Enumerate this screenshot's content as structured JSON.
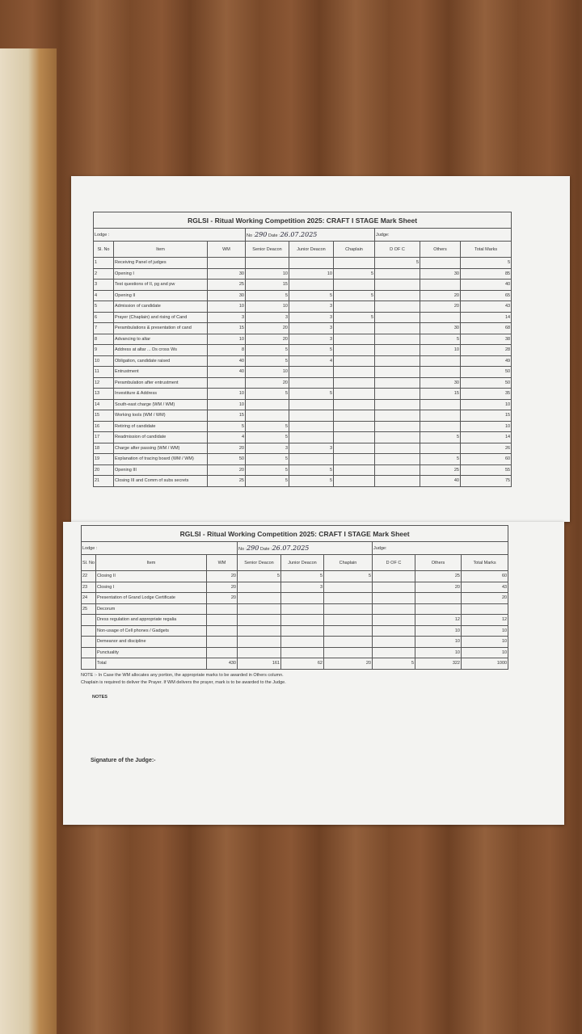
{
  "sheets": [
    {
      "title": "RGLSI - Ritual Working Competition 2025: CRAFT I STAGE Mark Sheet",
      "lodge_label": "Lodge :",
      "no_label": "No :",
      "no_value": "290",
      "date_label": "Date :",
      "date_value": "26.07.2025",
      "judge_label": "Judge:",
      "headers": [
        "Sl. No",
        "Item",
        "WM",
        "Senior Deacon",
        "Junior Deacon",
        "Chaplain",
        "D OF C",
        "Others",
        "Total Marks"
      ],
      "rows": [
        [
          1,
          "Receiving Panel of judges",
          null,
          null,
          null,
          null,
          5,
          null,
          5
        ],
        [
          2,
          "Opening I",
          30,
          10,
          10,
          5,
          null,
          30,
          85
        ],
        [
          3,
          "Test questions of II, pg and pw",
          25,
          15,
          null,
          null,
          null,
          null,
          40
        ],
        [
          4,
          "Opening II",
          30,
          5,
          5,
          5,
          null,
          20,
          65
        ],
        [
          5,
          "Admission of candidate",
          10,
          10,
          3,
          null,
          null,
          20,
          43
        ],
        [
          6,
          "Prayer (Chaplain) and rising of Cand",
          3,
          3,
          3,
          5,
          null,
          null,
          14
        ],
        [
          7,
          "Perambulations & presentation of cand",
          15,
          20,
          3,
          null,
          null,
          30,
          68
        ],
        [
          8,
          "Advancing to altar",
          10,
          20,
          3,
          null,
          null,
          5,
          38
        ],
        [
          9,
          "Address at altar ... Ds cross Ws",
          8,
          5,
          5,
          null,
          null,
          10,
          28
        ],
        [
          10,
          "Obligation, candidate raised",
          40,
          5,
          4,
          null,
          null,
          null,
          49
        ],
        [
          11,
          "Entrustment",
          40,
          10,
          null,
          null,
          null,
          null,
          50
        ],
        [
          12,
          "Perambulation after entrustment",
          null,
          20,
          null,
          null,
          null,
          30,
          50
        ],
        [
          13,
          "Investiture & Address",
          10,
          5,
          5,
          null,
          null,
          15,
          35
        ],
        [
          14,
          "South-east charge (WM / WM)",
          10,
          null,
          null,
          null,
          null,
          null,
          10
        ],
        [
          15,
          "Working tools (WM / WM)",
          15,
          null,
          null,
          null,
          null,
          null,
          15
        ],
        [
          16,
          "Retiring of candidate",
          5,
          5,
          null,
          null,
          null,
          null,
          10
        ],
        [
          17,
          "Readmission of candidate",
          4,
          5,
          null,
          null,
          null,
          5,
          14
        ],
        [
          18,
          "Charge after passing (WM / WM)",
          20,
          3,
          3,
          null,
          null,
          null,
          26
        ],
        [
          19,
          "Explanation of tracing board (WM / WM)",
          50,
          5,
          null,
          null,
          null,
          5,
          60
        ],
        [
          20,
          "Opening III",
          20,
          5,
          5,
          null,
          null,
          25,
          55
        ],
        [
          21,
          "Closing III and Comm of subs secrets",
          25,
          5,
          5,
          null,
          null,
          40,
          75
        ]
      ]
    },
    {
      "title": "RGLSI - Ritual Working Competition 2025: CRAFT I STAGE Mark Sheet",
      "lodge_label": "Lodge :",
      "no_label": "No :",
      "no_value": "290",
      "date_label": "Date :",
      "date_value": "26.07.2025",
      "judge_label": "Judge:",
      "headers": [
        "Sl. No",
        "Item",
        "WM",
        "Senior Deacon",
        "Junior Deacon",
        "Chaplain",
        "D OF C",
        "Others",
        "Total Marks"
      ],
      "rows": [
        [
          22,
          "Closing II",
          20,
          5,
          5,
          5,
          null,
          25,
          60
        ],
        [
          23,
          "Closing I",
          20,
          null,
          3,
          null,
          null,
          20,
          43
        ],
        [
          24,
          "Presentation of Grand Lodge Certificate",
          20,
          null,
          null,
          null,
          null,
          null,
          20
        ],
        [
          25,
          "Decorum",
          null,
          null,
          null,
          null,
          null,
          null,
          null
        ],
        [
          null,
          "Dress regulation and appropriate regalia",
          null,
          null,
          null,
          null,
          null,
          12,
          12
        ],
        [
          null,
          "Non-usage of Cell phones / Gadgets",
          null,
          null,
          null,
          null,
          null,
          10,
          10
        ],
        [
          null,
          "Demeanor and discipline",
          null,
          null,
          null,
          null,
          null,
          10,
          10
        ],
        [
          null,
          "Punctuality",
          null,
          null,
          null,
          null,
          null,
          10,
          10
        ],
        [
          null,
          "Total",
          430,
          161,
          62,
          20,
          5,
          322,
          1000
        ]
      ]
    }
  ],
  "notes": {
    "note1": "NOTE :- In Case the WM allocates any portion, the appropriate marks to be awarded in Others column.",
    "note2": "Chaplain is required to deliver the Prayer. If WM delivers the prayer, mark is to be awarded to the Judge.",
    "heading": "NOTES",
    "signature": "Signature of the Judge:-"
  }
}
